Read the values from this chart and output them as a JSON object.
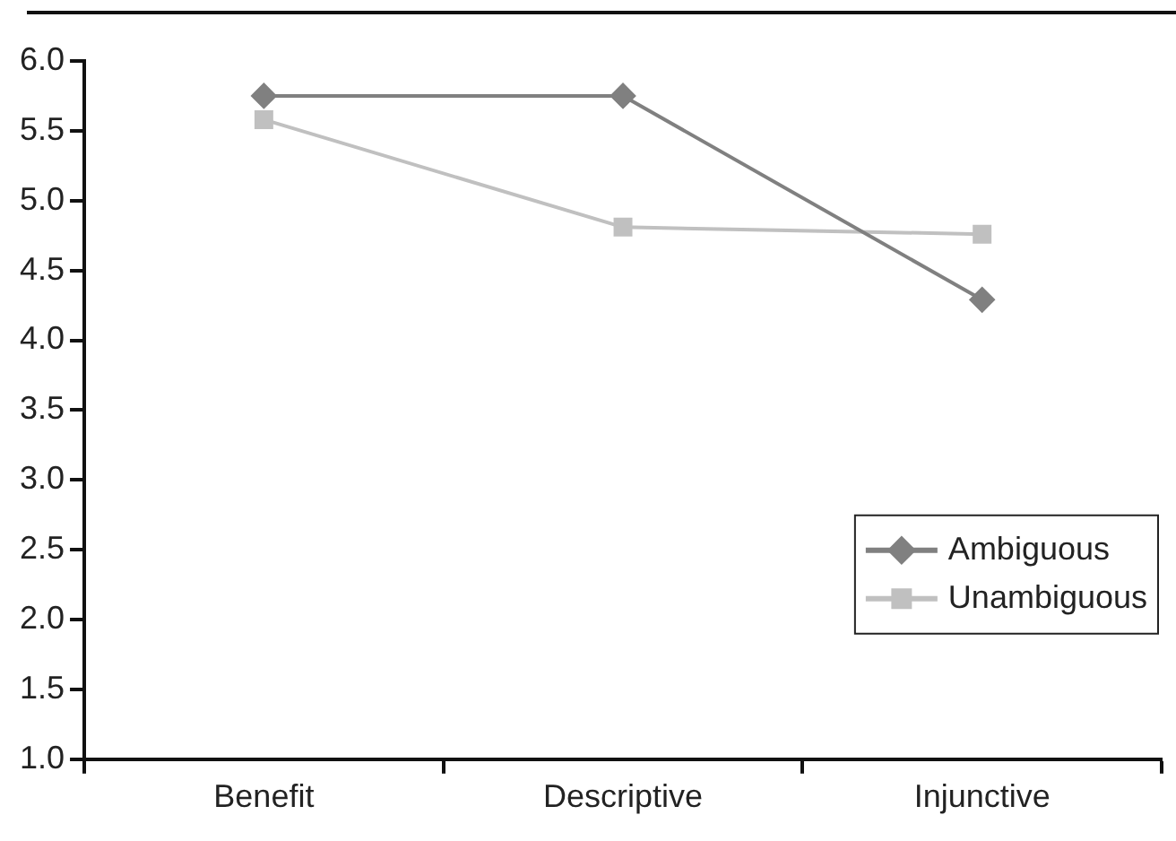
{
  "chart_data": {
    "type": "line",
    "categories": [
      "Benefit",
      "Descriptive",
      "Injunctive"
    ],
    "series": [
      {
        "name": "Ambiguous",
        "color": "#808080",
        "values": [
          5.75,
          5.75,
          4.29
        ],
        "marker": "diamond"
      },
      {
        "name": "Unambiguous",
        "color": "#c0c0c0",
        "values": [
          5.58,
          4.81,
          4.76
        ],
        "marker": "square"
      }
    ],
    "ylim": [
      1.0,
      6.0
    ],
    "yticks": [
      {
        "value": 1,
        "label": "1.0"
      },
      {
        "value": 1.5,
        "label": "1.5"
      },
      {
        "value": 2,
        "label": "2.0"
      },
      {
        "value": 2.5,
        "label": "2.5"
      },
      {
        "value": 3,
        "label": "3.0"
      },
      {
        "value": 3.5,
        "label": "3.5"
      },
      {
        "value": 4,
        "label": "4.0"
      },
      {
        "value": 4.5,
        "label": "4.5"
      },
      {
        "value": 5,
        "label": "5.0"
      },
      {
        "value": 5.5,
        "label": "5.5"
      },
      {
        "value": 6,
        "label": "6.0"
      }
    ],
    "grid": false,
    "legend": "bottom right",
    "line_style": "solid"
  }
}
